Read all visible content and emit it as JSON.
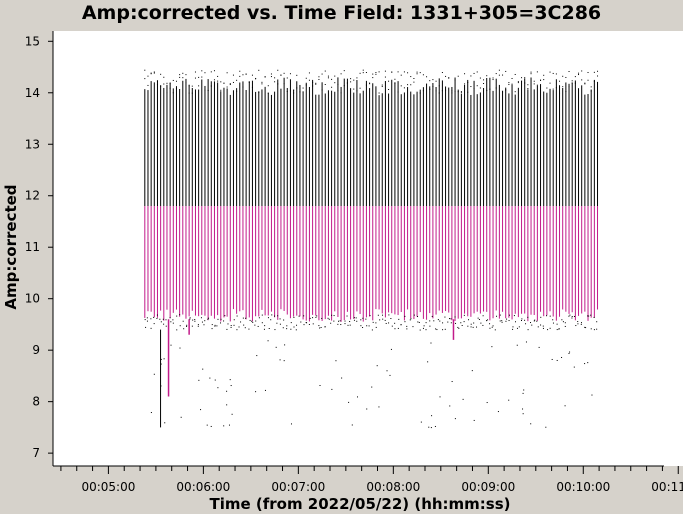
{
  "chart_data": {
    "type": "scatter",
    "title": "Amp:corrected vs. Time Field: 1331+305=3C286",
    "xlabel": "Time (from 2022/05/22) (hh:mm:ss)",
    "ylabel": "Amp:corrected",
    "x_range": [
      "00:04:25",
      "00:11:03"
    ],
    "ylim": [
      6.75,
      15.2
    ],
    "x_ticks": [
      "00:05:00",
      "00:06:00",
      "00:07:00",
      "00:08:00",
      "00:09:00",
      "00:10:00",
      "00:11:00"
    ],
    "y_ticks": [
      7,
      8,
      9,
      10,
      11,
      12,
      13,
      14,
      15
    ],
    "grid": false,
    "series": [
      {
        "color": "#000000",
        "marker": "point",
        "x_range": [
          "00:05:23",
          "00:10:10"
        ],
        "y_band": [
          9.4,
          14.3
        ],
        "outliers_y_range": [
          7.5,
          9.2
        ]
      },
      {
        "color": "#c21a8a",
        "marker": "point",
        "x_range": [
          "00:05:23",
          "00:10:10"
        ],
        "y_band": [
          9.6,
          11.8
        ],
        "low_spikes": [
          {
            "x": "00:05:38",
            "y": 8.1
          },
          {
            "x": "00:05:51",
            "y": 9.3
          },
          {
            "x": "00:08:38",
            "y": 9.2
          }
        ]
      }
    ]
  }
}
